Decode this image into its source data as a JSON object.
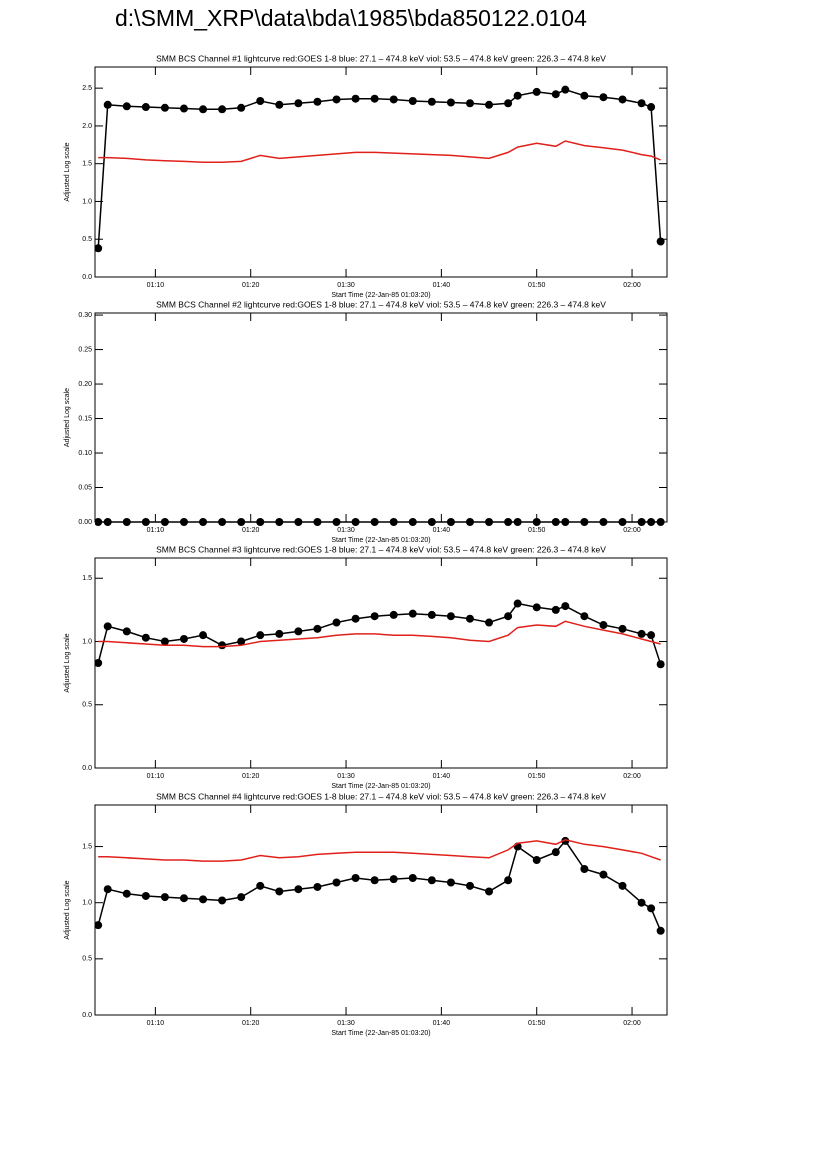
{
  "title": "d:\\SMM_XRP\\data\\bda\\1985\\bda850122.0104",
  "chart_data": [
    {
      "type": "line",
      "title": "SMM BCS Channel #1 lightcurve  red:GOES 1-8  blue: 27.1 – 474.8 keV  viol: 53.5 – 474.8 keV  green: 226.3 – 474.8 keV",
      "xlabel": "Start Time (22-Jan-85 01:03:20)",
      "ylabel": "Adjusted Log scale",
      "x": [
        "01:04",
        "01:05",
        "01:07",
        "01:09",
        "01:11",
        "01:13",
        "01:15",
        "01:17",
        "01:19",
        "01:21",
        "01:23",
        "01:25",
        "01:27",
        "01:29",
        "01:31",
        "01:33",
        "01:35",
        "01:37",
        "01:39",
        "01:41",
        "01:43",
        "01:45",
        "01:47",
        "01:48",
        "01:50",
        "01:52",
        "01:53",
        "01:55",
        "01:57",
        "01:59",
        "02:01",
        "02:02",
        "02:03"
      ],
      "xlim": [
        "01:03:40",
        "02:03:40"
      ],
      "xticks": [
        "01:10",
        "01:20",
        "01:30",
        "01:40",
        "01:50",
        "02:00"
      ],
      "ylim": [
        0,
        2.78
      ],
      "yticks": [
        {
          "value": 0,
          "label": "0.0"
        },
        0.5,
        {
          "value": 1,
          "label": "1.0"
        },
        1.5,
        {
          "value": 2,
          "label": "2.0"
        },
        2.5
      ],
      "series": [
        {
          "color": "#000000",
          "marker": "circle",
          "values": [
            0.38,
            2.28,
            2.26,
            2.25,
            2.24,
            2.23,
            2.22,
            2.22,
            2.24,
            2.33,
            2.28,
            2.3,
            2.32,
            2.35,
            2.36,
            2.36,
            2.35,
            2.33,
            2.32,
            2.31,
            2.3,
            2.28,
            2.3,
            2.4,
            2.45,
            2.42,
            2.48,
            2.4,
            2.38,
            2.35,
            2.3,
            2.25,
            0.47
          ]
        },
        {
          "color": "#e0201b",
          "values": [
            1.58,
            1.58,
            1.57,
            1.55,
            1.54,
            1.53,
            1.52,
            1.52,
            1.53,
            1.61,
            1.57,
            1.59,
            1.61,
            1.63,
            1.65,
            1.65,
            1.64,
            1.63,
            1.62,
            1.61,
            1.59,
            1.57,
            1.65,
            1.72,
            1.77,
            1.73,
            1.8,
            1.74,
            1.71,
            1.68,
            1.62,
            1.6,
            1.55
          ]
        }
      ]
    },
    {
      "type": "line",
      "title": "SMM BCS Channel #2 lightcurve  red:GOES 1-8  blue: 27.1 – 474.8 keV  viol: 53.5 – 474.8 keV  green: 226.3 – 474.8 keV",
      "xlabel": "Start Time (22-Jan-85 01:03:20)",
      "ylabel": "Adjusted Log scale",
      "x": [
        "01:04",
        "01:05",
        "01:07",
        "01:09",
        "01:11",
        "01:13",
        "01:15",
        "01:17",
        "01:19",
        "01:21",
        "01:23",
        "01:25",
        "01:27",
        "01:29",
        "01:31",
        "01:33",
        "01:35",
        "01:37",
        "01:39",
        "01:41",
        "01:43",
        "01:45",
        "01:47",
        "01:48",
        "01:50",
        "01:52",
        "01:53",
        "01:55",
        "01:57",
        "01:59",
        "02:01",
        "02:02",
        "02:03"
      ],
      "xlim": [
        "01:03:40",
        "02:03:40"
      ],
      "xticks": [
        "01:10",
        "01:20",
        "01:30",
        "01:40",
        "01:50",
        "02:00"
      ],
      "ylim": [
        0,
        0.303
      ],
      "yticks": [
        {
          "value": 0,
          "label": "0.00"
        },
        0.05,
        {
          "value": 0.1,
          "label": "0.10"
        },
        0.15,
        {
          "value": 0.2,
          "label": "0.20"
        },
        0.25,
        {
          "value": 0.3,
          "label": "0.30"
        }
      ],
      "series": [
        {
          "color": "#000000",
          "marker": "circle",
          "values": [
            0,
            0,
            0,
            0,
            0,
            0,
            0,
            0,
            0,
            0,
            0,
            0,
            0,
            0,
            0,
            0,
            0,
            0,
            0,
            0,
            0,
            0,
            0,
            0,
            0,
            0,
            0,
            0,
            0,
            0,
            0,
            0,
            0
          ]
        }
      ]
    },
    {
      "type": "line",
      "title": "SMM BCS Channel #3 lightcurve  red:GOES 1-8  blue: 27.1 – 474.8 keV  viol: 53.5 – 474.8 keV  green: 226.3 – 474.8 keV",
      "xlabel": "Start Time (22-Jan-85 01:03:20)",
      "ylabel": "Adjusted Log scale",
      "x": [
        "01:04",
        "01:05",
        "01:07",
        "01:09",
        "01:11",
        "01:13",
        "01:15",
        "01:17",
        "01:19",
        "01:21",
        "01:23",
        "01:25",
        "01:27",
        "01:29",
        "01:31",
        "01:33",
        "01:35",
        "01:37",
        "01:39",
        "01:41",
        "01:43",
        "01:45",
        "01:47",
        "01:48",
        "01:50",
        "01:52",
        "01:53",
        "01:55",
        "01:57",
        "01:59",
        "02:01",
        "02:02",
        "02:03"
      ],
      "xlim": [
        "01:03:40",
        "02:03:40"
      ],
      "xticks": [
        "01:10",
        "01:20",
        "01:30",
        "01:40",
        "01:50",
        "02:00"
      ],
      "ylim": [
        0,
        1.66
      ],
      "yticks": [
        {
          "value": 0,
          "label": "0.0"
        },
        0.5,
        {
          "value": 1,
          "label": "1.0"
        },
        1.5
      ],
      "series": [
        {
          "color": "#000000",
          "marker": "circle",
          "values": [
            0.83,
            1.12,
            1.08,
            1.03,
            1.0,
            1.02,
            1.05,
            0.97,
            1.0,
            1.05,
            1.06,
            1.08,
            1.1,
            1.15,
            1.18,
            1.2,
            1.21,
            1.22,
            1.21,
            1.2,
            1.18,
            1.15,
            1.2,
            1.3,
            1.27,
            1.25,
            1.28,
            1.2,
            1.13,
            1.1,
            1.06,
            1.05,
            0.82
          ]
        },
        {
          "color": "#e0201b",
          "values": [
            1.0,
            1.0,
            0.99,
            0.98,
            0.97,
            0.97,
            0.96,
            0.96,
            0.97,
            1.0,
            1.01,
            1.02,
            1.03,
            1.05,
            1.06,
            1.06,
            1.05,
            1.05,
            1.04,
            1.03,
            1.01,
            1.0,
            1.05,
            1.11,
            1.13,
            1.12,
            1.16,
            1.12,
            1.09,
            1.06,
            1.02,
            1.0,
            0.98
          ]
        }
      ]
    },
    {
      "type": "line",
      "title": "SMM BCS Channel #4 lightcurve  red:GOES 1-8  blue: 27.1 – 474.8 keV  viol: 53.5 – 474.8 keV  green: 226.3 – 474.8 keV",
      "xlabel": "Start Time (22-Jan-85 01:03:20)",
      "ylabel": "Adjusted Log scale",
      "x": [
        "01:04",
        "01:05",
        "01:07",
        "01:09",
        "01:11",
        "01:13",
        "01:15",
        "01:17",
        "01:19",
        "01:21",
        "01:23",
        "01:25",
        "01:27",
        "01:29",
        "01:31",
        "01:33",
        "01:35",
        "01:37",
        "01:39",
        "01:41",
        "01:43",
        "01:45",
        "01:47",
        "01:48",
        "01:50",
        "01:52",
        "01:53",
        "01:55",
        "01:57",
        "01:59",
        "02:01",
        "02:02",
        "02:03"
      ],
      "xlim": [
        "01:03:40",
        "02:03:40"
      ],
      "xticks": [
        "01:10",
        "01:20",
        "01:30",
        "01:40",
        "01:50",
        "02:00"
      ],
      "ylim": [
        0,
        1.87
      ],
      "yticks": [
        {
          "value": 0,
          "label": "0.0"
        },
        0.5,
        {
          "value": 1,
          "label": "1.0"
        },
        1.5
      ],
      "series": [
        {
          "color": "#000000",
          "marker": "circle",
          "values": [
            0.8,
            1.12,
            1.08,
            1.06,
            1.05,
            1.04,
            1.03,
            1.02,
            1.05,
            1.15,
            1.1,
            1.12,
            1.14,
            1.18,
            1.22,
            1.2,
            1.21,
            1.22,
            1.2,
            1.18,
            1.15,
            1.1,
            1.2,
            1.5,
            1.38,
            1.45,
            1.55,
            1.3,
            1.25,
            1.15,
            1.0,
            0.95,
            0.75
          ]
        },
        {
          "color": "#e0201b",
          "values": [
            1.41,
            1.41,
            1.4,
            1.39,
            1.38,
            1.38,
            1.37,
            1.37,
            1.38,
            1.42,
            1.4,
            1.41,
            1.43,
            1.44,
            1.45,
            1.45,
            1.45,
            1.44,
            1.43,
            1.42,
            1.41,
            1.4,
            1.47,
            1.53,
            1.55,
            1.52,
            1.56,
            1.52,
            1.5,
            1.47,
            1.44,
            1.41,
            1.38
          ]
        }
      ]
    }
  ]
}
